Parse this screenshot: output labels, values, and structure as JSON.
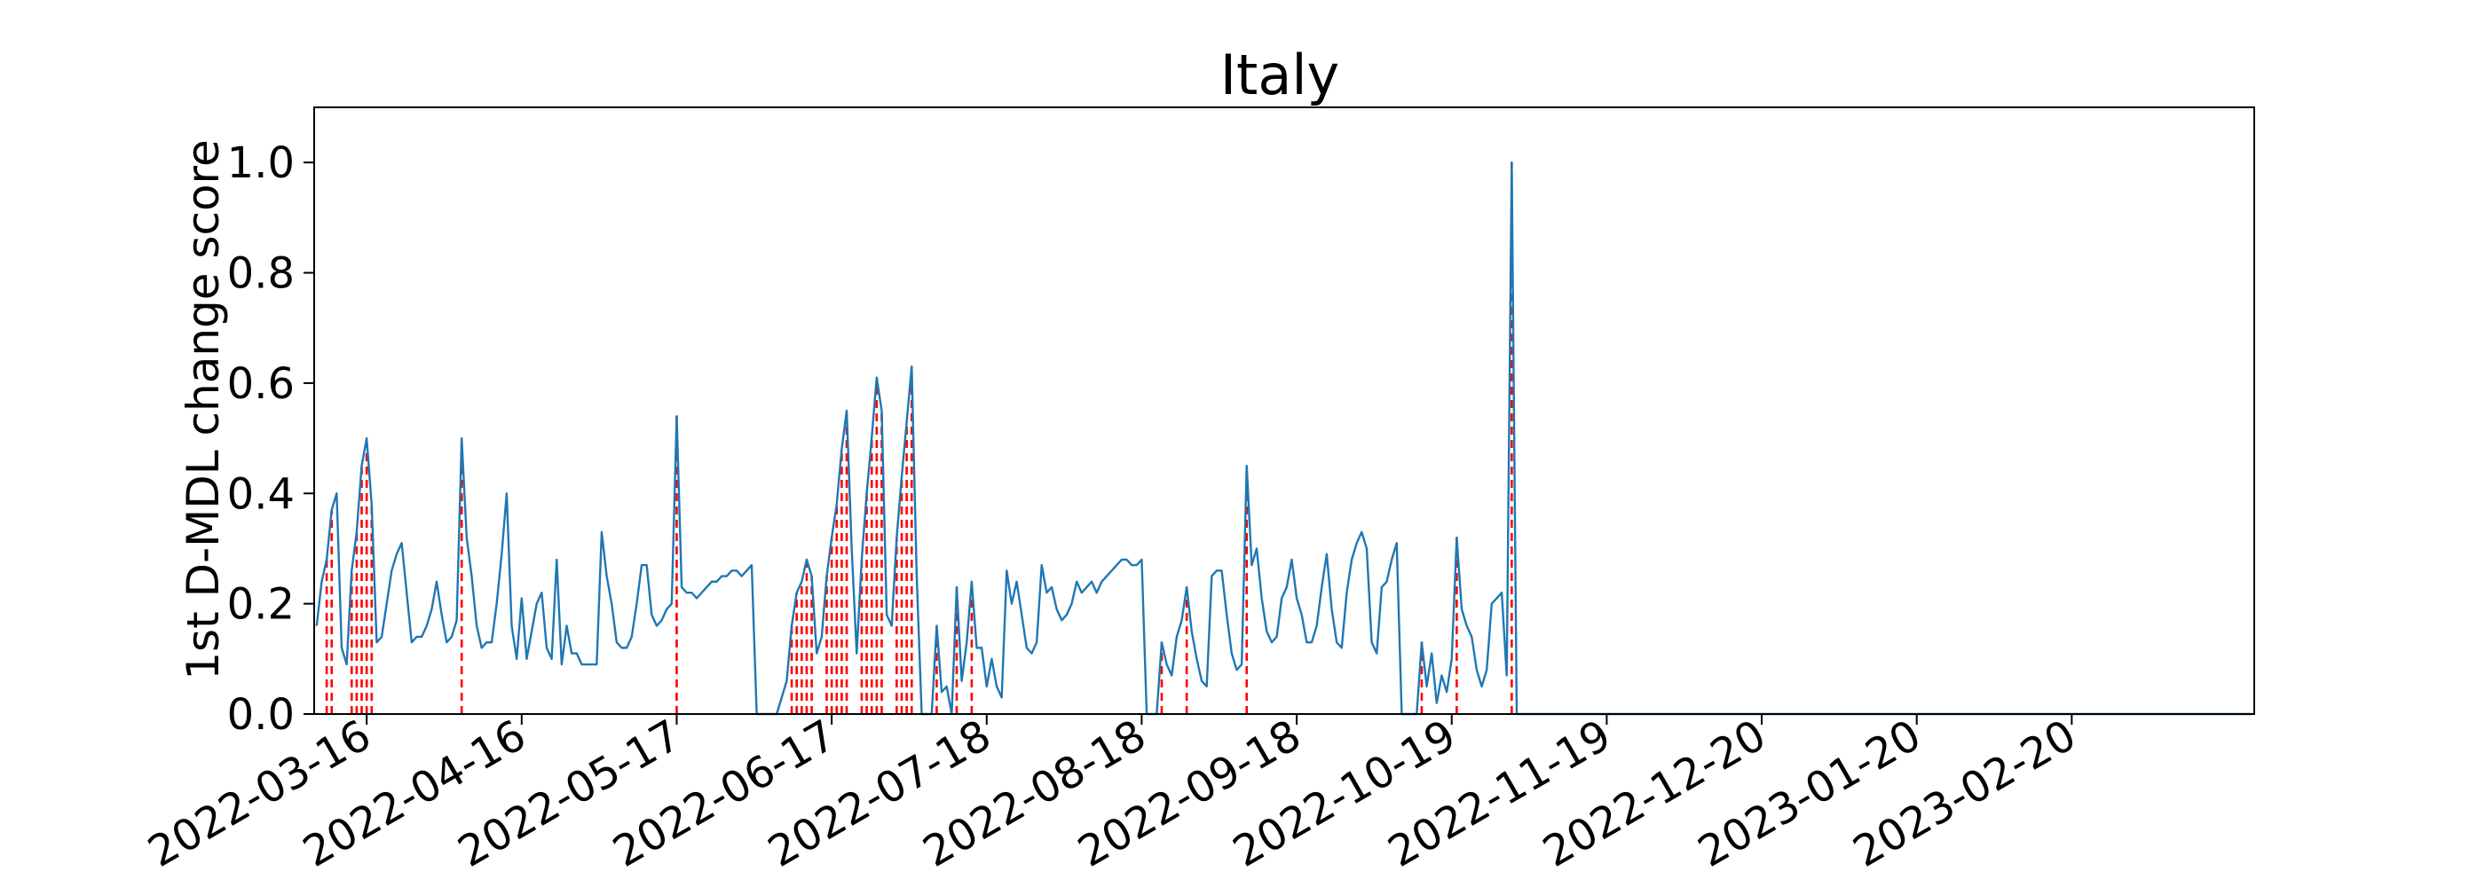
{
  "chart_data": {
    "type": "line",
    "title": "Italy",
    "xlabel": "",
    "ylabel": "1st D-MDL change score",
    "x_range": [
      "2022-03-06",
      "2023-03-28"
    ],
    "ylim": [
      0,
      1.1
    ],
    "yticks": [
      0.0,
      0.2,
      0.4,
      0.6,
      0.8,
      1.0
    ],
    "ytick_labels": [
      "0.0",
      "0.2",
      "0.4",
      "0.6",
      "0.8",
      "1.0"
    ],
    "xticks": [
      "2022-03-16",
      "2022-04-16",
      "2022-05-17",
      "2022-06-17",
      "2022-07-18",
      "2022-08-18",
      "2022-09-18",
      "2022-10-19",
      "2022-11-19",
      "2022-12-20",
      "2023-01-20",
      "2023-02-20"
    ],
    "grid": false,
    "colors": {
      "series": "#1f77b4",
      "change_points": "#ff0000"
    },
    "series": [
      {
        "points": [
          [
            "2022-03-06",
            0.16
          ],
          [
            "2022-03-07",
            0.24
          ],
          [
            "2022-03-08",
            0.28
          ],
          [
            "2022-03-09",
            0.37
          ],
          [
            "2022-03-10",
            0.4
          ],
          [
            "2022-03-11",
            0.12
          ],
          [
            "2022-03-12",
            0.09
          ],
          [
            "2022-03-13",
            0.26
          ],
          [
            "2022-03-14",
            0.33
          ],
          [
            "2022-03-15",
            0.45
          ],
          [
            "2022-03-16",
            0.5
          ],
          [
            "2022-03-17",
            0.38
          ],
          [
            "2022-03-18",
            0.13
          ],
          [
            "2022-03-19",
            0.14
          ],
          [
            "2022-03-20",
            0.2
          ],
          [
            "2022-03-21",
            0.26
          ],
          [
            "2022-03-22",
            0.29
          ],
          [
            "2022-03-23",
            0.31
          ],
          [
            "2022-03-24",
            0.22
          ],
          [
            "2022-03-25",
            0.13
          ],
          [
            "2022-03-26",
            0.14
          ],
          [
            "2022-03-27",
            0.14
          ],
          [
            "2022-03-28",
            0.16
          ],
          [
            "2022-03-29",
            0.19
          ],
          [
            "2022-03-30",
            0.24
          ],
          [
            "2022-03-31",
            0.18
          ],
          [
            "2022-04-01",
            0.13
          ],
          [
            "2022-04-02",
            0.14
          ],
          [
            "2022-04-03",
            0.17
          ],
          [
            "2022-04-04",
            0.5
          ],
          [
            "2022-04-05",
            0.32
          ],
          [
            "2022-04-06",
            0.25
          ],
          [
            "2022-04-07",
            0.16
          ],
          [
            "2022-04-08",
            0.12
          ],
          [
            "2022-04-09",
            0.13
          ],
          [
            "2022-04-10",
            0.13
          ],
          [
            "2022-04-11",
            0.2
          ],
          [
            "2022-04-12",
            0.29
          ],
          [
            "2022-04-13",
            0.4
          ],
          [
            "2022-04-14",
            0.16
          ],
          [
            "2022-04-15",
            0.1
          ],
          [
            "2022-04-16",
            0.21
          ],
          [
            "2022-04-17",
            0.1
          ],
          [
            "2022-04-18",
            0.15
          ],
          [
            "2022-04-19",
            0.2
          ],
          [
            "2022-04-20",
            0.22
          ],
          [
            "2022-04-21",
            0.12
          ],
          [
            "2022-04-22",
            0.1
          ],
          [
            "2022-04-23",
            0.28
          ],
          [
            "2022-04-24",
            0.09
          ],
          [
            "2022-04-25",
            0.16
          ],
          [
            "2022-04-26",
            0.11
          ],
          [
            "2022-04-27",
            0.11
          ],
          [
            "2022-04-28",
            0.09
          ],
          [
            "2022-04-29",
            0.09
          ],
          [
            "2022-04-30",
            0.09
          ],
          [
            "2022-05-01",
            0.09
          ],
          [
            "2022-05-02",
            0.33
          ],
          [
            "2022-05-03",
            0.25
          ],
          [
            "2022-05-04",
            0.2
          ],
          [
            "2022-05-05",
            0.13
          ],
          [
            "2022-05-06",
            0.12
          ],
          [
            "2022-05-07",
            0.12
          ],
          [
            "2022-05-08",
            0.14
          ],
          [
            "2022-05-09",
            0.2
          ],
          [
            "2022-05-10",
            0.27
          ],
          [
            "2022-05-11",
            0.27
          ],
          [
            "2022-05-12",
            0.18
          ],
          [
            "2022-05-13",
            0.16
          ],
          [
            "2022-05-14",
            0.17
          ],
          [
            "2022-05-15",
            0.19
          ],
          [
            "2022-05-16",
            0.2
          ],
          [
            "2022-05-17",
            0.54
          ],
          [
            "2022-05-18",
            0.23
          ],
          [
            "2022-05-19",
            0.22
          ],
          [
            "2022-05-20",
            0.22
          ],
          [
            "2022-05-21",
            0.21
          ],
          [
            "2022-05-22",
            0.22
          ],
          [
            "2022-05-23",
            0.23
          ],
          [
            "2022-05-24",
            0.24
          ],
          [
            "2022-05-25",
            0.24
          ],
          [
            "2022-05-26",
            0.25
          ],
          [
            "2022-05-27",
            0.25
          ],
          [
            "2022-05-28",
            0.26
          ],
          [
            "2022-05-29",
            0.26
          ],
          [
            "2022-05-30",
            0.25
          ],
          [
            "2022-05-31",
            0.26
          ],
          [
            "2022-06-01",
            0.27
          ],
          [
            "2022-06-02",
            0.0
          ],
          [
            "2022-06-03",
            0.0
          ],
          [
            "2022-06-04",
            0.0
          ],
          [
            "2022-06-05",
            0.0
          ],
          [
            "2022-06-06",
            0.0
          ],
          [
            "2022-06-07",
            0.03
          ],
          [
            "2022-06-08",
            0.06
          ],
          [
            "2022-06-09",
            0.16
          ],
          [
            "2022-06-10",
            0.22
          ],
          [
            "2022-06-11",
            0.24
          ],
          [
            "2022-06-12",
            0.28
          ],
          [
            "2022-06-13",
            0.25
          ],
          [
            "2022-06-14",
            0.11
          ],
          [
            "2022-06-15",
            0.14
          ],
          [
            "2022-06-16",
            0.25
          ],
          [
            "2022-06-17",
            0.32
          ],
          [
            "2022-06-18",
            0.38
          ],
          [
            "2022-06-19",
            0.48
          ],
          [
            "2022-06-20",
            0.55
          ],
          [
            "2022-06-21",
            0.3
          ],
          [
            "2022-06-22",
            0.11
          ],
          [
            "2022-06-23",
            0.28
          ],
          [
            "2022-06-24",
            0.4
          ],
          [
            "2022-06-25",
            0.5
          ],
          [
            "2022-06-26",
            0.61
          ],
          [
            "2022-06-27",
            0.55
          ],
          [
            "2022-06-28",
            0.18
          ],
          [
            "2022-06-29",
            0.16
          ],
          [
            "2022-06-30",
            0.32
          ],
          [
            "2022-07-01",
            0.43
          ],
          [
            "2022-07-02",
            0.53
          ],
          [
            "2022-07-03",
            0.63
          ],
          [
            "2022-07-04",
            0.25
          ],
          [
            "2022-07-05",
            0.0
          ],
          [
            "2022-07-06",
            0.0
          ],
          [
            "2022-07-07",
            0.0
          ],
          [
            "2022-07-08",
            0.16
          ],
          [
            "2022-07-09",
            0.04
          ],
          [
            "2022-07-10",
            0.05
          ],
          [
            "2022-07-11",
            0.0
          ],
          [
            "2022-07-12",
            0.23
          ],
          [
            "2022-07-13",
            0.06
          ],
          [
            "2022-07-14",
            0.13
          ],
          [
            "2022-07-15",
            0.24
          ],
          [
            "2022-07-16",
            0.12
          ],
          [
            "2022-07-17",
            0.12
          ],
          [
            "2022-07-18",
            0.05
          ],
          [
            "2022-07-19",
            0.1
          ],
          [
            "2022-07-20",
            0.05
          ],
          [
            "2022-07-21",
            0.03
          ],
          [
            "2022-07-22",
            0.26
          ],
          [
            "2022-07-23",
            0.2
          ],
          [
            "2022-07-24",
            0.24
          ],
          [
            "2022-07-25",
            0.18
          ],
          [
            "2022-07-26",
            0.12
          ],
          [
            "2022-07-27",
            0.11
          ],
          [
            "2022-07-28",
            0.13
          ],
          [
            "2022-07-29",
            0.27
          ],
          [
            "2022-07-30",
            0.22
          ],
          [
            "2022-07-31",
            0.23
          ],
          [
            "2022-08-01",
            0.19
          ],
          [
            "2022-08-02",
            0.17
          ],
          [
            "2022-08-03",
            0.18
          ],
          [
            "2022-08-04",
            0.2
          ],
          [
            "2022-08-05",
            0.24
          ],
          [
            "2022-08-06",
            0.22
          ],
          [
            "2022-08-07",
            0.23
          ],
          [
            "2022-08-08",
            0.24
          ],
          [
            "2022-08-09",
            0.22
          ],
          [
            "2022-08-10",
            0.24
          ],
          [
            "2022-08-11",
            0.25
          ],
          [
            "2022-08-12",
            0.26
          ],
          [
            "2022-08-13",
            0.27
          ],
          [
            "2022-08-14",
            0.28
          ],
          [
            "2022-08-15",
            0.28
          ],
          [
            "2022-08-16",
            0.27
          ],
          [
            "2022-08-17",
            0.27
          ],
          [
            "2022-08-18",
            0.28
          ],
          [
            "2022-08-19",
            0.0
          ],
          [
            "2022-08-20",
            0.0
          ],
          [
            "2022-08-21",
            0.0
          ],
          [
            "2022-08-22",
            0.13
          ],
          [
            "2022-08-23",
            0.09
          ],
          [
            "2022-08-24",
            0.07
          ],
          [
            "2022-08-25",
            0.14
          ],
          [
            "2022-08-26",
            0.17
          ],
          [
            "2022-08-27",
            0.23
          ],
          [
            "2022-08-28",
            0.15
          ],
          [
            "2022-08-29",
            0.1
          ],
          [
            "2022-08-30",
            0.06
          ],
          [
            "2022-08-31",
            0.05
          ],
          [
            "2022-09-01",
            0.25
          ],
          [
            "2022-09-02",
            0.26
          ],
          [
            "2022-09-03",
            0.26
          ],
          [
            "2022-09-04",
            0.18
          ],
          [
            "2022-09-05",
            0.11
          ],
          [
            "2022-09-06",
            0.08
          ],
          [
            "2022-09-07",
            0.09
          ],
          [
            "2022-09-08",
            0.45
          ],
          [
            "2022-09-09",
            0.27
          ],
          [
            "2022-09-10",
            0.3
          ],
          [
            "2022-09-11",
            0.21
          ],
          [
            "2022-09-12",
            0.15
          ],
          [
            "2022-09-13",
            0.13
          ],
          [
            "2022-09-14",
            0.14
          ],
          [
            "2022-09-15",
            0.21
          ],
          [
            "2022-09-16",
            0.23
          ],
          [
            "2022-09-17",
            0.28
          ],
          [
            "2022-09-18",
            0.21
          ],
          [
            "2022-09-19",
            0.18
          ],
          [
            "2022-09-20",
            0.13
          ],
          [
            "2022-09-21",
            0.13
          ],
          [
            "2022-09-22",
            0.16
          ],
          [
            "2022-09-23",
            0.23
          ],
          [
            "2022-09-24",
            0.29
          ],
          [
            "2022-09-25",
            0.19
          ],
          [
            "2022-09-26",
            0.13
          ],
          [
            "2022-09-27",
            0.12
          ],
          [
            "2022-09-28",
            0.22
          ],
          [
            "2022-09-29",
            0.28
          ],
          [
            "2022-09-30",
            0.31
          ],
          [
            "2022-10-01",
            0.33
          ],
          [
            "2022-10-02",
            0.3
          ],
          [
            "2022-10-03",
            0.13
          ],
          [
            "2022-10-04",
            0.11
          ],
          [
            "2022-10-05",
            0.23
          ],
          [
            "2022-10-06",
            0.24
          ],
          [
            "2022-10-07",
            0.28
          ],
          [
            "2022-10-08",
            0.31
          ],
          [
            "2022-10-09",
            0.0
          ],
          [
            "2022-10-10",
            0.0
          ],
          [
            "2022-10-11",
            0.0
          ],
          [
            "2022-10-12",
            0.0
          ],
          [
            "2022-10-13",
            0.13
          ],
          [
            "2022-10-14",
            0.05
          ],
          [
            "2022-10-15",
            0.11
          ],
          [
            "2022-10-16",
            0.02
          ],
          [
            "2022-10-17",
            0.07
          ],
          [
            "2022-10-18",
            0.04
          ],
          [
            "2022-10-19",
            0.1
          ],
          [
            "2022-10-20",
            0.32
          ],
          [
            "2022-10-21",
            0.19
          ],
          [
            "2022-10-22",
            0.16
          ],
          [
            "2022-10-23",
            0.14
          ],
          [
            "2022-10-24",
            0.08
          ],
          [
            "2022-10-25",
            0.05
          ],
          [
            "2022-10-26",
            0.08
          ],
          [
            "2022-10-27",
            0.2
          ],
          [
            "2022-10-28",
            0.21
          ],
          [
            "2022-10-29",
            0.22
          ],
          [
            "2022-10-30",
            0.07
          ],
          [
            "2022-10-31",
            1.0
          ],
          [
            "2022-11-01",
            0.0
          ],
          [
            "2023-03-28",
            0.0
          ]
        ]
      }
    ],
    "change_points": [
      "2022-03-08",
      "2022-03-09",
      "2022-03-13",
      "2022-03-14",
      "2022-03-15",
      "2022-03-16",
      "2022-03-17",
      "2022-04-04",
      "2022-05-17",
      "2022-06-09",
      "2022-06-10",
      "2022-06-11",
      "2022-06-12",
      "2022-06-13",
      "2022-06-16",
      "2022-06-17",
      "2022-06-18",
      "2022-06-19",
      "2022-06-20",
      "2022-06-23",
      "2022-06-24",
      "2022-06-25",
      "2022-06-26",
      "2022-06-27",
      "2022-06-30",
      "2022-07-01",
      "2022-07-02",
      "2022-07-03",
      "2022-07-08",
      "2022-07-12",
      "2022-07-15",
      "2022-08-22",
      "2022-08-27",
      "2022-09-08",
      "2022-10-13",
      "2022-10-20",
      "2022-10-31"
    ]
  }
}
